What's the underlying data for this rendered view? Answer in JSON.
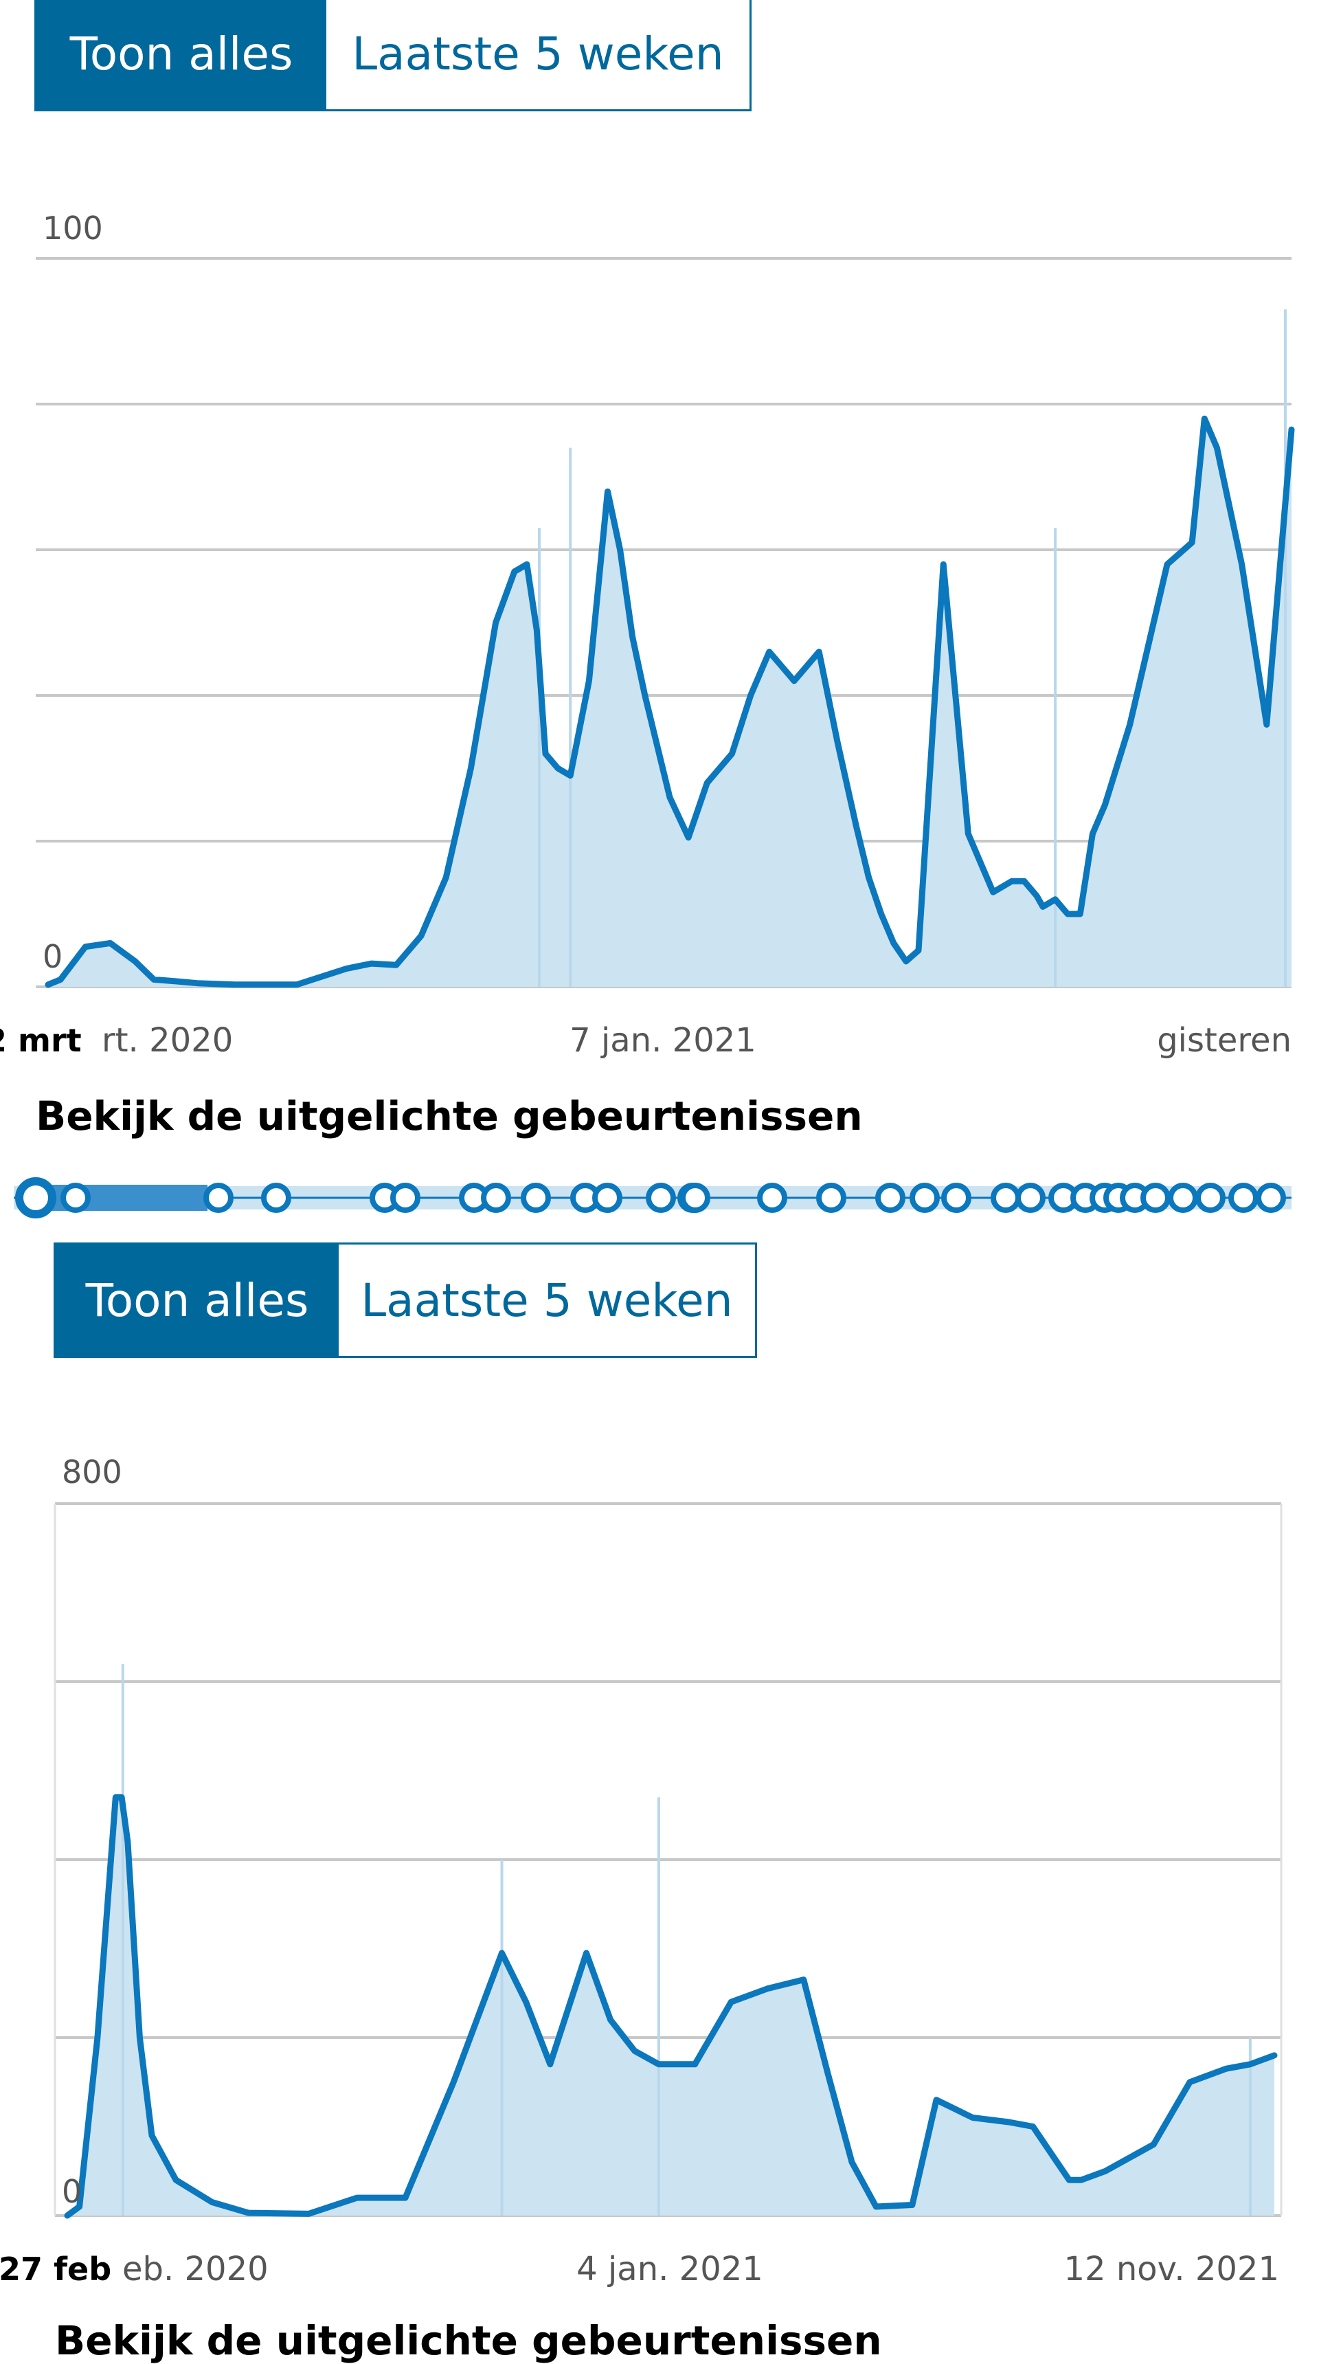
{
  "charts": [
    {
      "toggle": {
        "all_label": "Toon alles",
        "weeks_label": "Laatste 5 weken"
      },
      "heading": "Bekijk de uitgelichte gebeurtenissen",
      "x_label_left_bold": "2 mrt",
      "x_label_left": "rt. 2020",
      "x_label_mid": "7 jan. 2021",
      "x_label_right": "gisteren",
      "y_label_top": "100",
      "y_label_zero": "0"
    },
    {
      "toggle": {
        "all_label": "Toon alles",
        "weeks_label": "Laatste 5 weken"
      },
      "heading": "Bekijk de uitgelichte gebeurtenissen",
      "x_label_left_bold": "27 feb",
      "x_label_left": "eb. 2020",
      "x_label_mid": "4 jan. 2021",
      "x_label_right": "12 nov. 2021",
      "y_label_top": "800",
      "y_label_zero": "0"
    }
  ],
  "colors": {
    "accent": "#01689b",
    "line": "#0b77bd",
    "area": "#cce3f2"
  },
  "chart_data": [
    {
      "type": "area",
      "ylim": [
        0,
        100
      ],
      "gridlines": [
        0,
        20,
        40,
        60,
        80,
        100
      ],
      "x_norm": [
        0,
        0.01,
        0.03,
        0.05,
        0.07,
        0.085,
        0.1,
        0.12,
        0.15,
        0.2,
        0.24,
        0.26,
        0.28,
        0.3,
        0.32,
        0.34,
        0.36,
        0.375,
        0.385,
        0.393,
        0.4,
        0.41,
        0.42,
        0.435,
        0.45,
        0.46,
        0.47,
        0.48,
        0.49,
        0.5,
        0.515,
        0.53,
        0.55,
        0.565,
        0.58,
        0.6,
        0.62,
        0.635,
        0.65,
        0.66,
        0.67,
        0.68,
        0.69,
        0.7,
        0.72,
        0.74,
        0.76,
        0.775,
        0.785,
        0.795,
        0.8,
        0.81,
        0.815,
        0.82,
        0.83,
        0.84,
        0.85,
        0.87,
        0.9,
        0.92,
        0.93,
        0.94,
        0.96,
        0.98,
        1.0
      ],
      "y": [
        0.3,
        1,
        5.5,
        6,
        3.5,
        1,
        0.8,
        0.5,
        0.3,
        0.3,
        2.5,
        3.2,
        3,
        7,
        15,
        30,
        50,
        57,
        58,
        49,
        32,
        30,
        29,
        42,
        68,
        60,
        48,
        40,
        33,
        26,
        20.5,
        28,
        32,
        40,
        46,
        42,
        46,
        33.5,
        22,
        15,
        10,
        6,
        3.5,
        5,
        58,
        21,
        13,
        14.5,
        14.5,
        12.5,
        11,
        12,
        11,
        10,
        10,
        21,
        25,
        36,
        58,
        61,
        78,
        74,
        58,
        36,
        76.5
      ],
      "bar_spikes": [
        [
          0.42,
          74
        ],
        [
          0.395,
          63
        ],
        [
          0.81,
          63
        ],
        [
          0.995,
          93
        ]
      ]
    },
    {
      "type": "area",
      "ylim": [
        0,
        800
      ],
      "gridlines": [
        0,
        200,
        400,
        600,
        800
      ],
      "x_norm": [
        0,
        0.01,
        0.025,
        0.04,
        0.045,
        0.05,
        0.06,
        0.07,
        0.09,
        0.12,
        0.15,
        0.2,
        0.24,
        0.28,
        0.32,
        0.36,
        0.38,
        0.4,
        0.43,
        0.45,
        0.47,
        0.49,
        0.5,
        0.52,
        0.55,
        0.58,
        0.61,
        0.63,
        0.65,
        0.67,
        0.7,
        0.72,
        0.75,
        0.78,
        0.8,
        0.82,
        0.83,
        0.84,
        0.86,
        0.9,
        0.93,
        0.96,
        0.98,
        1.0
      ],
      "y": [
        0,
        10,
        200,
        470,
        470,
        420,
        200,
        90,
        40,
        15,
        3,
        2,
        20,
        20,
        150,
        295,
        240,
        170,
        295,
        220,
        185,
        170,
        170,
        170,
        240,
        255,
        265,
        160,
        60,
        10,
        12,
        130,
        110,
        105,
        100,
        60,
        40,
        40,
        50,
        80,
        150,
        165,
        170,
        180
      ],
      "bar_spikes": [
        [
          0.046,
          620
        ],
        [
          0.49,
          470
        ],
        [
          0.36,
          400
        ],
        [
          0.98,
          200
        ]
      ]
    }
  ]
}
